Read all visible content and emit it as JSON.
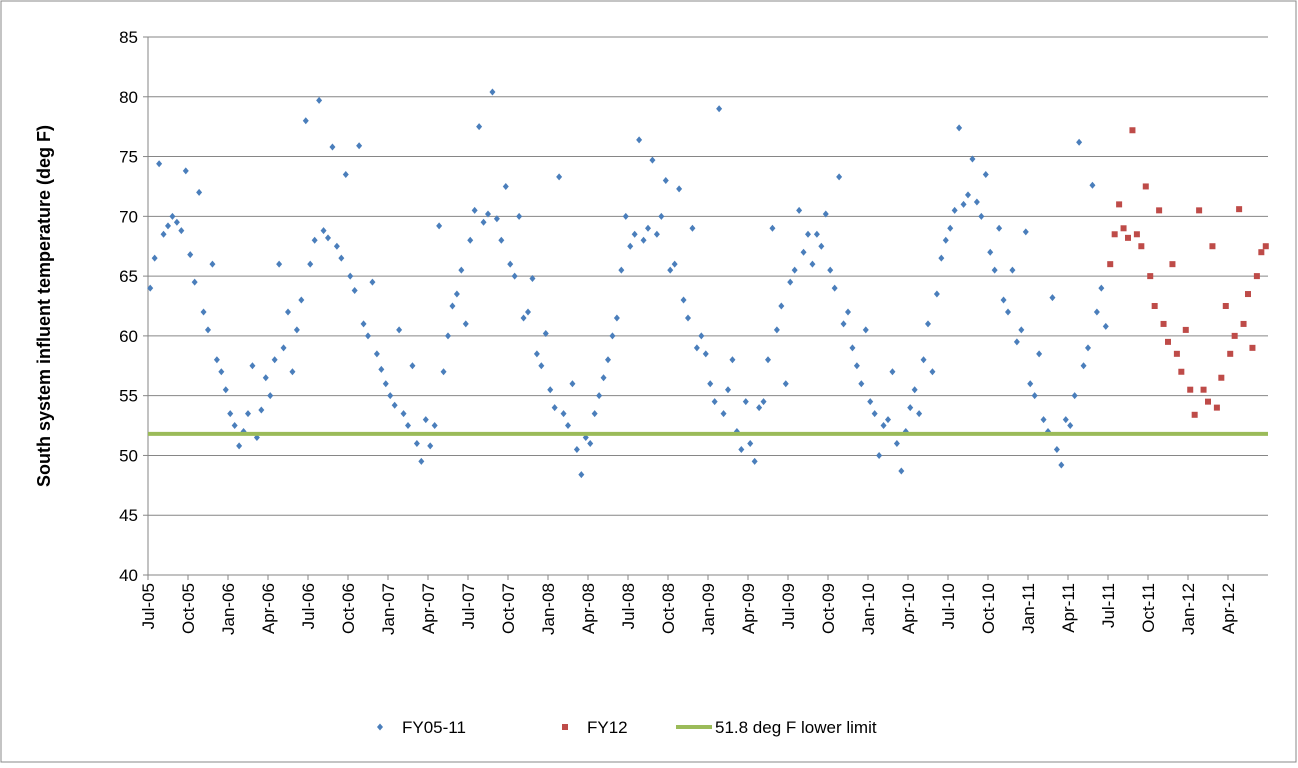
{
  "chart_data": {
    "type": "scatter",
    "y_label": "South system influent temperature (deg F)",
    "ylim": [
      40,
      85
    ],
    "yticks": [
      40,
      45,
      50,
      55,
      60,
      65,
      70,
      75,
      80,
      85
    ],
    "xlim": [
      "2005-07",
      "2012-07"
    ],
    "xticks": [
      {
        "value": "2005-07",
        "label": "Jul-05"
      },
      {
        "value": "2005-10",
        "label": "Oct-05"
      },
      {
        "value": "2006-01",
        "label": "Jan-06"
      },
      {
        "value": "2006-04",
        "label": "Apr-06"
      },
      {
        "value": "2006-07",
        "label": "Jul-06"
      },
      {
        "value": "2006-10",
        "label": "Oct-06"
      },
      {
        "value": "2007-01",
        "label": "Jan-07"
      },
      {
        "value": "2007-04",
        "label": "Apr-07"
      },
      {
        "value": "2007-07",
        "label": "Jul-07"
      },
      {
        "value": "2007-10",
        "label": "Oct-07"
      },
      {
        "value": "2008-01",
        "label": "Jan-08"
      },
      {
        "value": "2008-04",
        "label": "Apr-08"
      },
      {
        "value": "2008-07",
        "label": "Jul-08"
      },
      {
        "value": "2008-10",
        "label": "Oct-08"
      },
      {
        "value": "2009-01",
        "label": "Jan-09"
      },
      {
        "value": "2009-04",
        "label": "Apr-09"
      },
      {
        "value": "2009-07",
        "label": "Jul-09"
      },
      {
        "value": "2009-10",
        "label": "Oct-09"
      },
      {
        "value": "2010-01",
        "label": "Jan-10"
      },
      {
        "value": "2010-04",
        "label": "Apr-10"
      },
      {
        "value": "2010-07",
        "label": "Jul-10"
      },
      {
        "value": "2010-10",
        "label": "Oct-10"
      },
      {
        "value": "2011-01",
        "label": "Jan-11"
      },
      {
        "value": "2011-04",
        "label": "Apr-11"
      },
      {
        "value": "2011-07",
        "label": "Jul-11"
      },
      {
        "value": "2011-10",
        "label": "Oct-11"
      },
      {
        "value": "2012-01",
        "label": "Jan-12"
      },
      {
        "value": "2012-04",
        "label": "Apr-12"
      }
    ],
    "grid": true,
    "series": [
      {
        "name": "FY05-11",
        "color": "#4a7ebb",
        "marker": "diamond",
        "x": [
          "2005-07",
          "2005-07",
          "2005-07",
          "2005-08",
          "2005-08",
          "2005-08",
          "2005-09",
          "2005-09",
          "2005-09",
          "2005-10",
          "2005-10",
          "2005-10",
          "2005-11",
          "2005-11",
          "2005-11",
          "2005-12",
          "2005-12",
          "2005-12",
          "2006-01",
          "2006-01",
          "2006-01",
          "2006-02",
          "2006-02",
          "2006-02",
          "2006-03",
          "2006-03",
          "2006-03",
          "2006-04",
          "2006-04",
          "2006-04",
          "2006-05",
          "2006-05",
          "2006-05",
          "2006-06",
          "2006-06",
          "2006-06",
          "2006-07",
          "2006-07",
          "2006-07",
          "2006-08",
          "2006-08",
          "2006-08",
          "2006-09",
          "2006-09",
          "2006-09",
          "2006-10",
          "2006-10",
          "2006-10",
          "2006-11",
          "2006-11",
          "2006-11",
          "2006-12",
          "2006-12",
          "2006-12",
          "2007-01",
          "2007-01",
          "2007-01",
          "2007-02",
          "2007-02",
          "2007-02",
          "2007-03",
          "2007-03",
          "2007-03",
          "2007-04",
          "2007-04",
          "2007-04",
          "2007-05",
          "2007-05",
          "2007-05",
          "2007-06",
          "2007-06",
          "2007-06",
          "2007-07",
          "2007-07",
          "2007-07",
          "2007-08",
          "2007-08",
          "2007-08",
          "2007-09",
          "2007-09",
          "2007-09",
          "2007-10",
          "2007-10",
          "2007-10",
          "2007-11",
          "2007-11",
          "2007-11",
          "2007-12",
          "2007-12",
          "2007-12",
          "2008-01",
          "2008-01",
          "2008-01",
          "2008-02",
          "2008-02",
          "2008-02",
          "2008-03",
          "2008-03",
          "2008-03",
          "2008-04",
          "2008-04",
          "2008-04",
          "2008-05",
          "2008-05",
          "2008-05",
          "2008-06",
          "2008-06",
          "2008-06",
          "2008-07",
          "2008-07",
          "2008-07",
          "2008-08",
          "2008-08",
          "2008-08",
          "2008-09",
          "2008-09",
          "2008-09",
          "2008-10",
          "2008-10",
          "2008-10",
          "2008-11",
          "2008-11",
          "2008-11",
          "2008-12",
          "2008-12",
          "2008-12",
          "2009-01",
          "2009-01",
          "2009-01",
          "2009-02",
          "2009-02",
          "2009-02",
          "2009-03",
          "2009-03",
          "2009-03",
          "2009-04",
          "2009-04",
          "2009-04",
          "2009-05",
          "2009-05",
          "2009-05",
          "2009-06",
          "2009-06",
          "2009-06",
          "2009-07",
          "2009-07",
          "2009-07",
          "2009-08",
          "2009-08",
          "2009-08",
          "2009-09",
          "2009-09",
          "2009-09",
          "2009-10",
          "2009-10",
          "2009-10",
          "2009-11",
          "2009-11",
          "2009-11",
          "2009-12",
          "2009-12",
          "2009-12",
          "2010-01",
          "2010-01",
          "2010-01",
          "2010-02",
          "2010-02",
          "2010-02",
          "2010-03",
          "2010-03",
          "2010-03",
          "2010-04",
          "2010-04",
          "2010-04",
          "2010-05",
          "2010-05",
          "2010-05",
          "2010-06",
          "2010-06",
          "2010-06",
          "2010-07",
          "2010-07",
          "2010-07",
          "2010-08",
          "2010-08",
          "2010-08",
          "2010-09",
          "2010-09",
          "2010-09",
          "2010-10",
          "2010-10",
          "2010-10",
          "2010-11",
          "2010-11",
          "2010-11",
          "2010-12",
          "2010-12",
          "2010-12",
          "2011-01",
          "2011-01",
          "2011-01",
          "2011-02",
          "2011-02",
          "2011-02",
          "2011-03",
          "2011-03",
          "2011-03",
          "2011-04",
          "2011-04",
          "2011-04",
          "2011-05",
          "2011-05",
          "2011-05",
          "2011-06",
          "2011-06",
          "2011-06"
        ],
        "values": [
          64,
          66.5,
          74.4,
          68.5,
          69.2,
          70,
          69.5,
          68.8,
          73.8,
          66.8,
          64.5,
          72,
          62,
          60.5,
          66,
          58,
          57,
          55.5,
          53.5,
          52.5,
          50.8,
          52,
          53.5,
          57.5,
          51.5,
          53.8,
          56.5,
          55,
          58,
          66,
          59,
          62,
          57,
          60.5,
          63,
          78,
          66,
          68,
          79.7,
          68.8,
          68.2,
          75.8,
          67.5,
          66.5,
          73.5,
          65,
          63.8,
          75.9,
          61,
          60,
          64.5,
          58.5,
          57.2,
          56,
          55,
          54.2,
          60.5,
          53.5,
          52.5,
          57.5,
          51,
          49.5,
          53,
          50.8,
          52.5,
          69.2,
          57,
          60,
          62.5,
          63.5,
          65.5,
          61,
          68,
          70.5,
          77.5,
          69.5,
          70.2,
          80.4,
          69.8,
          68,
          72.5,
          66,
          65,
          70,
          61.5,
          62,
          64.8,
          58.5,
          57.5,
          60.2,
          55.5,
          54,
          73.3,
          53.5,
          52.5,
          56,
          50.5,
          48.4,
          51.5,
          51,
          53.5,
          55,
          56.5,
          58,
          60,
          61.5,
          65.5,
          70,
          67.5,
          68.5,
          76.4,
          68,
          69,
          74.7,
          68.5,
          70,
          73,
          65.5,
          66,
          72.3,
          63,
          61.5,
          69,
          59,
          60,
          58.5,
          56,
          54.5,
          79,
          53.5,
          55.5,
          58,
          52,
          50.5,
          54.5,
          51,
          49.5,
          54,
          54.5,
          58,
          69,
          60.5,
          62.5,
          56,
          64.5,
          65.5,
          70.5,
          67,
          68.5,
          66,
          68.5,
          67.5,
          70.2,
          65.5,
          64,
          73.3,
          61,
          62,
          59,
          57.5,
          56,
          60.5,
          54.5,
          53.5,
          50,
          52.5,
          53,
          57,
          51,
          48.7,
          52,
          54,
          55.5,
          53.5,
          58,
          61,
          57,
          63.5,
          66.5,
          68,
          69,
          70.5,
          77.4,
          71,
          71.8,
          74.8,
          71.2,
          70,
          73.5,
          67,
          65.5,
          69,
          63,
          62,
          65.5,
          59.5,
          60.5,
          68.7,
          56,
          55,
          58.5,
          53,
          52,
          63.2,
          50.5,
          49.2,
          53,
          52.5,
          55,
          76.2,
          57.5,
          59,
          72.6,
          62,
          64,
          60.8
        ]
      },
      {
        "name": "FY12",
        "color": "#be4b48",
        "marker": "square",
        "x": [
          "2011-07",
          "2011-07",
          "2011-07",
          "2011-08",
          "2011-08",
          "2011-08",
          "2011-09",
          "2011-09",
          "2011-09",
          "2011-10",
          "2011-10",
          "2011-10",
          "2011-11",
          "2011-11",
          "2011-11",
          "2011-12",
          "2011-12",
          "2011-12",
          "2012-01",
          "2012-01",
          "2012-01",
          "2012-02",
          "2012-02",
          "2012-02",
          "2012-03",
          "2012-03",
          "2012-03",
          "2012-04",
          "2012-04",
          "2012-04",
          "2012-05",
          "2012-05",
          "2012-05",
          "2012-06",
          "2012-06",
          "2012-06"
        ],
        "values": [
          66,
          68.5,
          71,
          69,
          68.2,
          77.2,
          68.5,
          67.5,
          72.5,
          65,
          62.5,
          70.5,
          61,
          59.5,
          66,
          58.5,
          57,
          60.5,
          55.5,
          53.4,
          70.5,
          55.5,
          54.5,
          67.5,
          54,
          56.5,
          62.5,
          58.5,
          60,
          70.6,
          61,
          63.5,
          59,
          65,
          67,
          67.5
        ]
      }
    ],
    "limit": {
      "name": "51.8 deg F lower limit",
      "value": 51.8,
      "color": "#9bbb59"
    }
  }
}
